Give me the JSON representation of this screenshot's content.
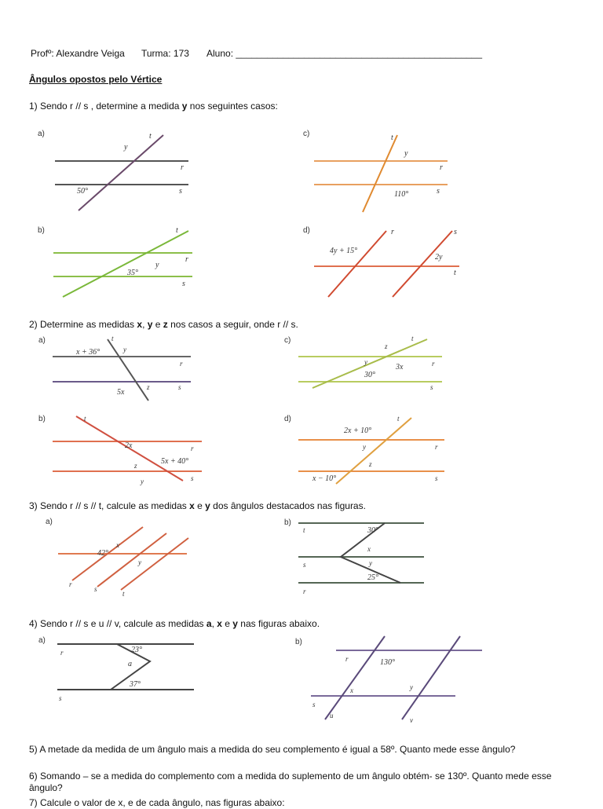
{
  "header": {
    "teacher": "Profº: Alexandre Veiga",
    "class": "Turma: 173",
    "student": "Aluno: _______________________________________________"
  },
  "title": "Ângulos opostos pelo Vértice",
  "q1": {
    "pre": "1) Sendo r // s , determine a medida ",
    "var": "y",
    "post": " nos seguintes casos:",
    "a": {
      "label": "a)",
      "angle": "50°",
      "y": "y",
      "t": "t",
      "r": "r",
      "s": "s"
    },
    "b": {
      "label": "b)",
      "angle": "35°",
      "y": "y",
      "t": "t",
      "r": "r",
      "s": "s"
    },
    "c": {
      "label": "c)",
      "angle": "110°",
      "y": "y",
      "t": "t",
      "r": "r",
      "s": "s"
    },
    "d": {
      "label": "d)",
      "expr1": "4y + 15°",
      "expr2": "2y",
      "r": "r",
      "s": "s",
      "t": "t"
    }
  },
  "q2": {
    "pre": "2) Determine as medidas ",
    "x": "x",
    "c1": ", ",
    "y": "y",
    "c2": " e ",
    "z": "z",
    "post": "  nos casos a seguir, onde r // s.",
    "a": {
      "label": "a)",
      "e1": "x + 36°",
      "e2": "5x",
      "y": "y",
      "z": "z",
      "t": "t",
      "r": "r",
      "s": "s"
    },
    "b": {
      "label": "b)",
      "e1": "2x",
      "e2": "5x + 40°",
      "y": "y",
      "z": "z",
      "t": "t",
      "r": "r",
      "s": "s"
    },
    "c": {
      "label": "c)",
      "e1": "3x",
      "e2": "30°",
      "y": "y",
      "z": "z",
      "t": "t",
      "r": "r",
      "s": "s"
    },
    "d": {
      "label": "d)",
      "e1": "2x + 10°",
      "e2": "x − 10°",
      "y": "y",
      "z": "z",
      "t": "t",
      "r": "r",
      "s": "s"
    }
  },
  "q3": {
    "pre": "3) Sendo r // s // t, calcule as medidas ",
    "x": "x",
    "mid": " e ",
    "y": "y",
    "post": " dos ângulos destacados nas figuras.",
    "a": {
      "label": "a)",
      "angle": "42°",
      "x": "x",
      "y": "y",
      "r": "r",
      "s": "s",
      "t": "t"
    },
    "b": {
      "label": "b)",
      "a1": "30°",
      "a2": "25°",
      "x": "x",
      "y": "y",
      "r": "r",
      "s": "s",
      "t": "t"
    }
  },
  "q4": {
    "pre": "4) Sendo r // s e u // v, calcule as medidas ",
    "a": "a",
    "c1": ", ",
    "x": "x",
    "c2": " e ",
    "y": "y",
    "post": " nas figuras abaixo.",
    "fa": {
      "label": "a)",
      "a1": "23°",
      "a2": "37°",
      "av": "a",
      "r": "r",
      "s": "s"
    },
    "fb": {
      "label": "b)",
      "angle": "130°",
      "x": "x",
      "y": "y",
      "r": "r",
      "s": "s",
      "u": "u",
      "v": "v"
    }
  },
  "q5": "5) A metade da medida de um ângulo mais a medida do seu complemento é igual a 58º. Quanto mede esse ângulo?",
  "q6": "6) Somando – se a medida do complemento com a medida do suplemento de um ângulo obtém- se 130º. Quanto mede esse ângulo?",
  "q7": "7) Calcule o valor de x, e de cada ângulo, nas figuras abaixo:"
}
